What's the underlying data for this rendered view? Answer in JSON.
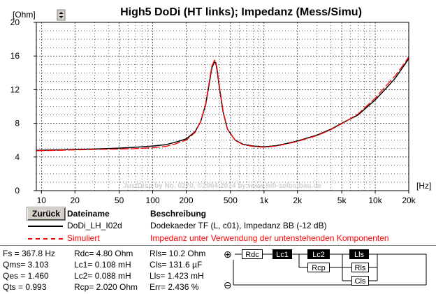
{
  "chart_data": {
    "type": "line",
    "title": "High5 DoDi (HT links); Impedanz (Mess/Simu)",
    "ylabel": "[Ohm]",
    "xlabel": "[Hz]",
    "xscale": "log",
    "xlim": [
      9,
      20000
    ],
    "ylim": [
      0,
      20
    ],
    "y_ticks": [
      "0",
      "4",
      "8",
      "12",
      "16",
      "20"
    ],
    "x_ticks": [
      "10",
      "20",
      "50",
      "100",
      "200",
      "500",
      "1k",
      "2k",
      "5k",
      "10k",
      "20k"
    ],
    "grid": true,
    "watermark": "JustDisp by No. 0270, ©2004-2014 by www.hifi-selbstbau.de",
    "series": [
      {
        "name": "DoDi_LH_I02d",
        "color": "#000000",
        "x": [
          9,
          15,
          20,
          30,
          50,
          70,
          100,
          130,
          160,
          200,
          240,
          270,
          300,
          320,
          340,
          360,
          368,
          380,
          400,
          430,
          470,
          550,
          650,
          800,
          1000,
          1300,
          1600,
          2000,
          3000,
          4000,
          5000,
          7000,
          10000,
          12000,
          15000,
          18000,
          20000
        ],
        "values": [
          4.8,
          4.85,
          4.9,
          4.95,
          5.05,
          5.15,
          5.3,
          5.45,
          5.75,
          6.15,
          7.0,
          8.2,
          10.3,
          12.5,
          14.6,
          15.3,
          15.2,
          14.2,
          12.0,
          9.3,
          7.3,
          6.0,
          5.5,
          5.3,
          5.2,
          5.35,
          5.6,
          5.9,
          6.6,
          7.3,
          8.0,
          9.0,
          10.8,
          11.9,
          13.3,
          14.8,
          15.7
        ]
      },
      {
        "name": "Simuliert",
        "color": "#ff0000",
        "dashed": true,
        "x": [
          9,
          15,
          20,
          30,
          50,
          70,
          100,
          130,
          160,
          200,
          240,
          270,
          300,
          320,
          340,
          360,
          368,
          380,
          400,
          430,
          470,
          550,
          650,
          800,
          1000,
          1300,
          1600,
          2000,
          3000,
          4000,
          5000,
          7000,
          10000,
          12000,
          15000,
          18000,
          20000
        ],
        "values": [
          4.75,
          4.8,
          4.85,
          4.9,
          4.95,
          5.0,
          5.1,
          5.25,
          5.55,
          6.0,
          6.9,
          8.2,
          10.4,
          12.7,
          14.8,
          15.5,
          15.4,
          14.4,
          12.2,
          9.4,
          7.3,
          6.0,
          5.45,
          5.25,
          5.15,
          5.3,
          5.55,
          5.85,
          6.55,
          7.25,
          7.95,
          9.1,
          11.0,
          12.2,
          13.6,
          15.0,
          15.9
        ]
      }
    ]
  },
  "legend": {
    "back_button": "Zurück",
    "col_name": "Dateiname",
    "col_desc": "Beschreibung",
    "rows": [
      {
        "name": "DoDi_LH_I02d",
        "desc": "Dodekaeder TF (L, c01), Impedanz BB (-12 dB)"
      },
      {
        "name": "Simuliert",
        "desc": "Impedanz unter Verwendung der untenstehenden Komponenten"
      }
    ]
  },
  "params": {
    "col1": [
      "Fs   = 367.8 Hz",
      "Qms= 3.103",
      "Qes = 1.460",
      "Qts  = 0.993"
    ],
    "col2": [
      "Rdc=  4.80 Ohm",
      "Lc1= 0.108 mH",
      "Lc2= 0.088 mH",
      "Rcp= 2.020 Ohm"
    ],
    "col3": [
      "Rls=  10.2 Ohm",
      "Cls= 131.6 µF",
      "Lls= 1.423 mH",
      "Err= 2.436 %"
    ]
  },
  "circuit": {
    "plus": "⊕",
    "minus": "⊖",
    "rdc": "Rdc",
    "lc1": "Lc1",
    "lc2": "Lc2",
    "rcp": "Rcp",
    "lls": "Lls",
    "rls": "Rls",
    "cls": "Cls"
  }
}
